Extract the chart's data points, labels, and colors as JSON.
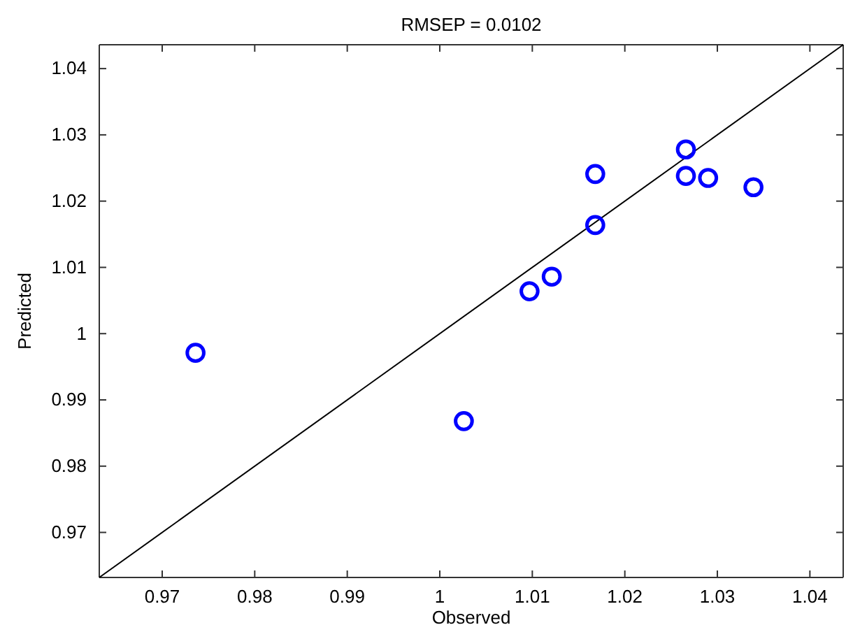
{
  "chart_data": {
    "type": "scatter",
    "title": "RMSEP = 0.0102",
    "xlabel": "Observed",
    "ylabel": "Predicted",
    "xlim": [
      0.9632,
      1.0436
    ],
    "ylim": [
      0.9632,
      1.0436
    ],
    "xticks": [
      0.97,
      0.98,
      0.99,
      1,
      1.01,
      1.02,
      1.03,
      1.04
    ],
    "yticks": [
      0.97,
      0.98,
      0.99,
      1,
      1.01,
      1.02,
      1.03,
      1.04
    ],
    "grid": false,
    "series": [
      {
        "marker": "circle",
        "color": "#0000ff",
        "x": [
          0.9736,
          1.0026,
          1.0097,
          1.0121,
          1.0168,
          1.0168,
          1.0266,
          1.0266,
          1.029,
          1.0339
        ],
        "values": [
          0.9971,
          0.9868,
          1.0064,
          1.0086,
          1.0164,
          1.0241,
          1.0278,
          1.0238,
          1.0235,
          1.0221
        ]
      },
      {
        "type": "line",
        "color": "#000000",
        "line_style": "solid",
        "x": [
          0.9632,
          1.0436
        ],
        "values": [
          0.9632,
          1.0436
        ]
      }
    ]
  }
}
